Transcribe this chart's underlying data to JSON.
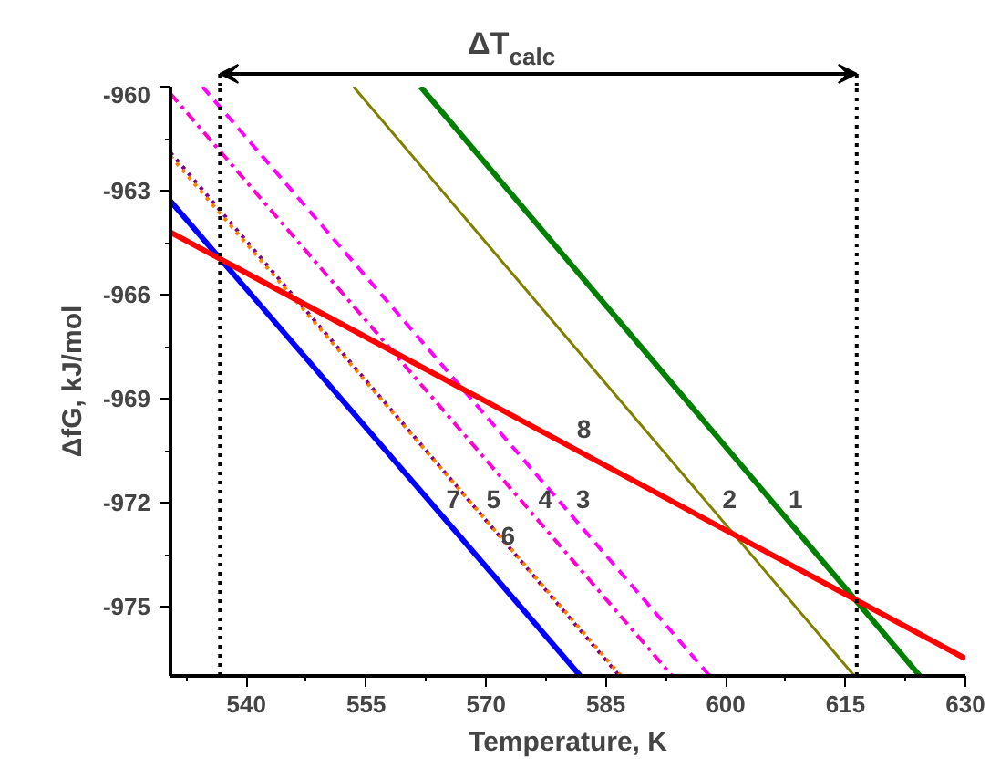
{
  "chart_data": {
    "type": "line",
    "xlabel": "Temperature, K",
    "ylabel": "ΔfG, kJ/mol",
    "xlim": [
      530.5,
      630
    ],
    "ylim": [
      -977,
      -960
    ],
    "xticks": [
      540,
      555,
      570,
      585,
      600,
      615,
      630
    ],
    "yticks": [
      -960,
      -963,
      -966,
      -969,
      -972,
      -975
    ],
    "grid": false,
    "legend": false,
    "marker": "none",
    "series": [
      {
        "name": "1",
        "color": "#008000",
        "x": [
          561.8,
          624.3
        ],
        "values": [
          -960,
          -977
        ],
        "line_style": "solid"
      },
      {
        "name": "2",
        "color": "#808000",
        "x": [
          553.4,
          616.1
        ],
        "values": [
          -960,
          -977
        ],
        "line_style": "solid"
      },
      {
        "name": "3",
        "color": "#ff00ff",
        "x": [
          534.5,
          598.0
        ],
        "values": [
          -960,
          -977
        ],
        "line_style": "dashed"
      },
      {
        "name": "4",
        "color": "#ff00cc",
        "x": [
          530.5,
          593.3
        ],
        "values": [
          -960.2,
          -977
        ],
        "line_style": "dashdot"
      },
      {
        "name": "5",
        "color": "#800080",
        "x": [
          530.5,
          586.7
        ],
        "values": [
          -961.9,
          -977
        ],
        "line_style": "dotted"
      },
      {
        "name": "6",
        "color": "#ff8000",
        "x": [
          530.5,
          586.9
        ],
        "values": [
          -962.0,
          -977
        ],
        "line_style": "dotted"
      },
      {
        "name": "7",
        "color": "#0000ff",
        "x": [
          530.5,
          581.8
        ],
        "values": [
          -963.3,
          -977
        ],
        "line_style": "solid"
      },
      {
        "name": "8",
        "color": "#ff0000",
        "x": [
          530.5,
          630.0
        ],
        "values": [
          -964.2,
          -976.5
        ],
        "line_style": "solid"
      }
    ],
    "ref_lines": [
      {
        "axis": "x",
        "value": 536.7,
        "line_style": "dotted",
        "color": "#000000"
      },
      {
        "axis": "x",
        "value": 616.4,
        "line_style": "dotted",
        "color": "#000000"
      }
    ],
    "annotations": [
      "ΔT$_{calc}$"
    ]
  }
}
